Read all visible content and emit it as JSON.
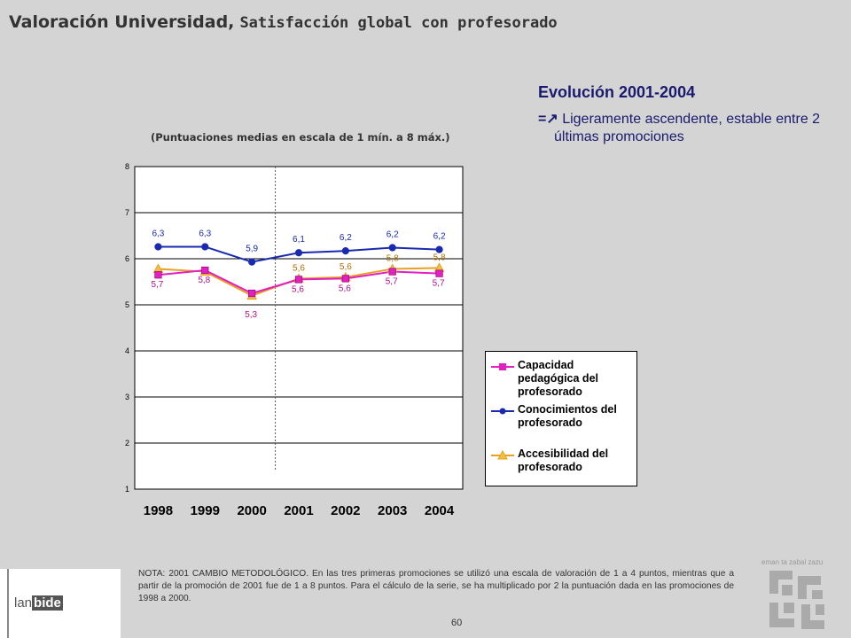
{
  "header": {
    "title_main": "Valoración Universidad,",
    "title_sub": "Satisfacción global con  profesorado"
  },
  "evolution": {
    "title": "Evolución 2001-2004",
    "arrow": "=↗",
    "text": "Ligeramente ascendente, estable entre 2 últimas promociones"
  },
  "chart_subtitle": "(Puntuaciones medias en escala de 1 mín. a 8 máx.)",
  "chart_data": {
    "type": "line",
    "title": "",
    "xlabel": "",
    "ylabel": "",
    "ylim": [
      1,
      8
    ],
    "yticks": [
      1,
      2,
      3,
      4,
      5,
      6,
      7,
      8
    ],
    "categories": [
      "1998",
      "1999",
      "2000",
      "2001",
      "2002",
      "2003",
      "2004"
    ],
    "divider_after_category": "2000",
    "grid": true,
    "legend_position": "right",
    "series": [
      {
        "name": "Capacidad pedagógica del profesorado",
        "color": "#e020c0",
        "marker": "square",
        "values": [
          5.65,
          5.75,
          5.25,
          5.55,
          5.57,
          5.72,
          5.68
        ],
        "labels": [
          "5,7",
          "5,8",
          "5,3",
          "5,6",
          "5,6",
          "5,7",
          "5,7"
        ]
      },
      {
        "name": "Conocimientos del profesorado",
        "color": "#1a2ab0",
        "marker": "circle",
        "values": [
          6.26,
          6.26,
          5.93,
          6.13,
          6.17,
          6.24,
          6.2
        ],
        "labels": [
          "6,3",
          "6,3",
          "5,9",
          "6,1",
          "6,2",
          "6,2",
          "6,2"
        ]
      },
      {
        "name": "Accesibilidad del profesorado",
        "color": "#e8a020",
        "marker": "triangle",
        "values": [
          5.78,
          5.72,
          5.2,
          5.57,
          5.6,
          5.78,
          5.8
        ],
        "labels": [
          "",
          "",
          "",
          "5,6",
          "5,6",
          "5,8",
          "5,8"
        ]
      }
    ]
  },
  "note": "NOTA: 2001 CAMBIO METODOLÓGICO. En las tres primeras promociones se utilizó una escala de valoración de 1 a 4 puntos, mientras que a partir de la promoción de 2001 fue de 1 a 8 puntos. Para el cálculo de la serie, se ha multiplicado por 2 la puntuación dada en las promociones de 1998 a 2000.",
  "page_number": "60",
  "logos": {
    "lanbide_lan": "lan",
    "lanbide_bide": "bide",
    "lanbide_tag": "",
    "gv_text": "eman ta zabal zazu"
  }
}
